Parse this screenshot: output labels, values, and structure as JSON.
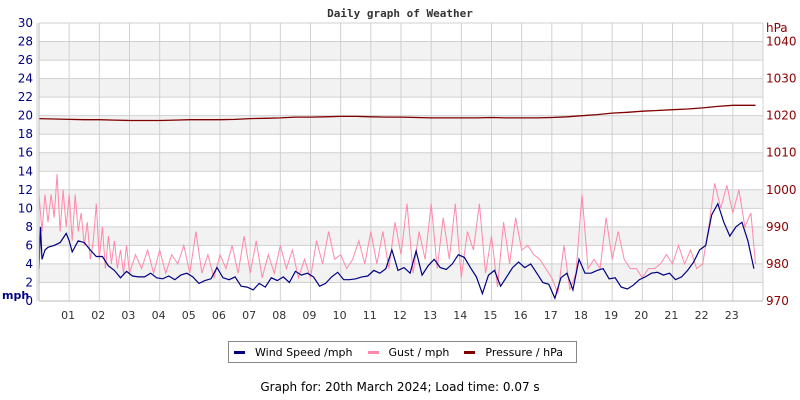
{
  "chart_data": {
    "type": "line",
    "title": "Daily graph of Weather",
    "xlabel": "",
    "ylabel_left": "mph",
    "ylabel_right": "hPa",
    "x_ticks": [
      "01",
      "02",
      "03",
      "04",
      "05",
      "06",
      "07",
      "08",
      "09",
      "10",
      "11",
      "12",
      "13",
      "14",
      "15",
      "16",
      "17",
      "18",
      "19",
      "20",
      "21",
      "22",
      "23"
    ],
    "x_range": [
      0,
      24
    ],
    "y_left_ticks": [
      0,
      2,
      4,
      6,
      8,
      10,
      12,
      14,
      16,
      18,
      20,
      22,
      24,
      26,
      28,
      30
    ],
    "ylim_left": [
      0,
      30
    ],
    "y_right_ticks": [
      970,
      980,
      990,
      1000,
      1010,
      1020,
      1030,
      1040
    ],
    "ylim_right": [
      970,
      1045
    ],
    "grid": true,
    "legend_position": "bottom",
    "colors": {
      "wind": "#000080",
      "gust": "#ff88aa",
      "pressure": "#800000",
      "grid": "#d0d0d0",
      "band": "#f2f2f2"
    },
    "series": [
      {
        "name": "Wind Speed /mph",
        "key": "wind",
        "x_hours": [
          0.0,
          0.05,
          0.1,
          0.2,
          0.3,
          0.5,
          0.7,
          0.9,
          1.0,
          1.1,
          1.3,
          1.5,
          1.7,
          1.9,
          2.1,
          2.3,
          2.5,
          2.7,
          2.9,
          3.1,
          3.3,
          3.5,
          3.7,
          3.9,
          4.1,
          4.3,
          4.5,
          4.7,
          4.9,
          5.1,
          5.3,
          5.5,
          5.7,
          5.9,
          6.1,
          6.3,
          6.5,
          6.7,
          6.9,
          7.1,
          7.3,
          7.5,
          7.7,
          7.9,
          8.1,
          8.3,
          8.5,
          8.7,
          8.9,
          9.1,
          9.3,
          9.5,
          9.7,
          9.9,
          10.1,
          10.3,
          10.5,
          10.7,
          10.9,
          11.1,
          11.3,
          11.5,
          11.7,
          11.9,
          12.1,
          12.3,
          12.5,
          12.7,
          12.9,
          13.1,
          13.3,
          13.5,
          13.7,
          13.9,
          14.1,
          14.3,
          14.5,
          14.7,
          14.9,
          15.1,
          15.3,
          15.5,
          15.7,
          15.9,
          16.1,
          16.3,
          16.5,
          16.7,
          16.9,
          17.1,
          17.3,
          17.5,
          17.7,
          17.9,
          18.1,
          18.3,
          18.5,
          18.7,
          18.9,
          19.1,
          19.3,
          19.5,
          19.7,
          19.9,
          20.1,
          20.3,
          20.5,
          20.7,
          20.9,
          21.1,
          21.3,
          21.5,
          21.7,
          21.9,
          22.1,
          22.3,
          22.5,
          22.7,
          22.9,
          23.1,
          23.3,
          23.5,
          23.7
        ],
        "values": [
          3.5,
          8.0,
          4.5,
          5.5,
          5.8,
          6.0,
          6.3,
          7.3,
          6.5,
          5.3,
          6.5,
          6.3,
          5.5,
          4.8,
          4.8,
          3.8,
          3.3,
          2.5,
          3.2,
          2.7,
          2.6,
          2.6,
          3.0,
          2.5,
          2.4,
          2.7,
          2.3,
          2.8,
          3.0,
          2.6,
          1.9,
          2.2,
          2.4,
          3.6,
          2.5,
          2.3,
          2.6,
          1.6,
          1.5,
          1.2,
          1.9,
          1.5,
          2.5,
          2.2,
          2.6,
          2.0,
          3.2,
          2.8,
          3.0,
          2.6,
          1.6,
          1.9,
          2.6,
          3.1,
          2.3,
          2.3,
          2.4,
          2.6,
          2.7,
          3.3,
          3.0,
          3.5,
          5.5,
          3.3,
          3.6,
          3.0,
          5.4,
          2.8,
          3.8,
          4.5,
          3.6,
          3.4,
          4.0,
          5.0,
          4.7,
          3.6,
          2.6,
          0.8,
          2.8,
          3.3,
          1.6,
          2.6,
          3.6,
          4.2,
          3.6,
          4.0,
          3.0,
          2.0,
          1.8,
          0.3,
          2.5,
          3.0,
          1.2,
          4.5,
          3.0,
          3.0,
          3.3,
          3.5,
          2.4,
          2.5,
          1.5,
          1.3,
          1.7,
          2.3,
          2.6,
          3.0,
          3.1,
          2.8,
          3.0,
          2.3,
          2.6,
          3.3,
          4.2,
          5.5,
          6.0,
          9.3,
          10.5,
          8.5,
          7.0,
          8.0,
          8.5,
          6.5,
          3.5,
          4.4,
          4.0
        ]
      },
      {
        "name": "Gust / mph",
        "key": "gust",
        "x_hours": [
          0.0,
          0.1,
          0.2,
          0.3,
          0.4,
          0.5,
          0.6,
          0.7,
          0.8,
          0.9,
          1.0,
          1.1,
          1.2,
          1.3,
          1.4,
          1.5,
          1.6,
          1.7,
          1.8,
          1.9,
          2.0,
          2.1,
          2.2,
          2.3,
          2.4,
          2.5,
          2.6,
          2.7,
          2.8,
          2.9,
          3.0,
          3.2,
          3.4,
          3.6,
          3.8,
          4.0,
          4.2,
          4.4,
          4.6,
          4.8,
          5.0,
          5.2,
          5.4,
          5.6,
          5.8,
          6.0,
          6.2,
          6.4,
          6.6,
          6.8,
          7.0,
          7.2,
          7.4,
          7.6,
          7.8,
          8.0,
          8.2,
          8.4,
          8.6,
          8.8,
          9.0,
          9.2,
          9.4,
          9.6,
          9.8,
          10.0,
          10.2,
          10.4,
          10.6,
          10.8,
          11.0,
          11.2,
          11.4,
          11.6,
          11.8,
          12.0,
          12.2,
          12.4,
          12.6,
          12.8,
          13.0,
          13.2,
          13.4,
          13.6,
          13.8,
          14.0,
          14.2,
          14.4,
          14.6,
          14.8,
          15.0,
          15.2,
          15.4,
          15.6,
          15.8,
          16.0,
          16.2,
          16.4,
          16.6,
          16.8,
          17.0,
          17.2,
          17.4,
          17.6,
          17.8,
          18.0,
          18.2,
          18.4,
          18.6,
          18.8,
          19.0,
          19.2,
          19.4,
          19.6,
          19.8,
          20.0,
          20.2,
          20.4,
          20.6,
          20.8,
          21.0,
          21.2,
          21.4,
          21.6,
          21.8,
          22.0,
          22.2,
          22.4,
          22.6,
          22.8,
          23.0,
          23.2,
          23.4,
          23.6,
          23.75
        ],
        "values": [
          11.5,
          7.5,
          11.5,
          8.5,
          11.5,
          9.0,
          13.7,
          7.5,
          12.0,
          8.0,
          11.5,
          6.5,
          11.5,
          7.5,
          9.5,
          6.0,
          8.5,
          4.5,
          6.5,
          10.5,
          4.5,
          8.0,
          3.5,
          7.0,
          4.0,
          6.5,
          3.5,
          5.5,
          3.0,
          6.0,
          3.0,
          5.0,
          3.5,
          5.5,
          3.0,
          5.5,
          3.0,
          5.0,
          4.0,
          6.0,
          3.0,
          7.5,
          3.0,
          5.0,
          2.5,
          5.0,
          3.5,
          6.0,
          3.0,
          7.0,
          3.0,
          6.5,
          2.5,
          5.0,
          3.0,
          6.0,
          3.5,
          5.5,
          2.5,
          4.5,
          2.5,
          6.5,
          4.0,
          7.5,
          4.5,
          5.0,
          3.5,
          4.5,
          6.5,
          4.0,
          7.5,
          4.0,
          7.5,
          3.5,
          8.5,
          5.0,
          10.5,
          3.0,
          7.5,
          4.5,
          10.5,
          3.5,
          9.0,
          4.5,
          10.5,
          2.5,
          7.5,
          5.5,
          10.5,
          3.0,
          7.0,
          1.5,
          8.5,
          4.0,
          9.0,
          5.5,
          6.0,
          5.0,
          4.5,
          3.5,
          2.5,
          0.8,
          6.0,
          1.2,
          3.0,
          11.5,
          3.5,
          4.5,
          3.5,
          9.0,
          4.5,
          7.5,
          4.5,
          3.5,
          3.5,
          2.5,
          3.5,
          3.5,
          4.0,
          5.0,
          4.0,
          6.0,
          4.0,
          5.5,
          3.5,
          4.0,
          8.0,
          12.7,
          10.0,
          12.5,
          9.5,
          12.0,
          8.0,
          9.5,
          4.0,
          9.5
        ]
      },
      {
        "name": "Pressure / hPa",
        "key": "pressure",
        "x_hours": [
          0.0,
          0.5,
          1.0,
          1.5,
          2.0,
          2.5,
          3.0,
          3.5,
          4.0,
          4.5,
          5.0,
          5.5,
          6.0,
          6.5,
          7.0,
          7.5,
          8.0,
          8.5,
          9.0,
          9.5,
          10.0,
          10.5,
          11.0,
          11.5,
          12.0,
          12.5,
          13.0,
          13.5,
          14.0,
          14.5,
          15.0,
          15.5,
          16.0,
          16.5,
          17.0,
          17.5,
          18.0,
          18.5,
          19.0,
          19.5,
          20.0,
          20.5,
          21.0,
          21.5,
          22.0,
          22.5,
          23.0,
          23.5,
          23.75
        ],
        "values": [
          1019.2,
          1019.1,
          1019.0,
          1018.9,
          1018.9,
          1018.8,
          1018.7,
          1018.7,
          1018.7,
          1018.8,
          1018.9,
          1018.9,
          1018.9,
          1019.0,
          1019.2,
          1019.3,
          1019.4,
          1019.6,
          1019.6,
          1019.7,
          1019.8,
          1019.8,
          1019.7,
          1019.6,
          1019.6,
          1019.5,
          1019.4,
          1019.4,
          1019.4,
          1019.4,
          1019.5,
          1019.4,
          1019.4,
          1019.4,
          1019.5,
          1019.7,
          1020.0,
          1020.3,
          1020.7,
          1020.9,
          1021.2,
          1021.4,
          1021.6,
          1021.8,
          1022.1,
          1022.5,
          1022.8,
          1022.8,
          1022.8
        ]
      }
    ]
  },
  "legend": {
    "items": [
      {
        "label": "Wind Speed /mph",
        "color": "#000080"
      },
      {
        "label": "Gust / mph",
        "color": "#ff88aa"
      },
      {
        "label": "Pressure / hPa",
        "color": "#800000"
      }
    ]
  },
  "footer": {
    "text": "Graph for: 20th March 2024; Load time: 0.07 s"
  }
}
